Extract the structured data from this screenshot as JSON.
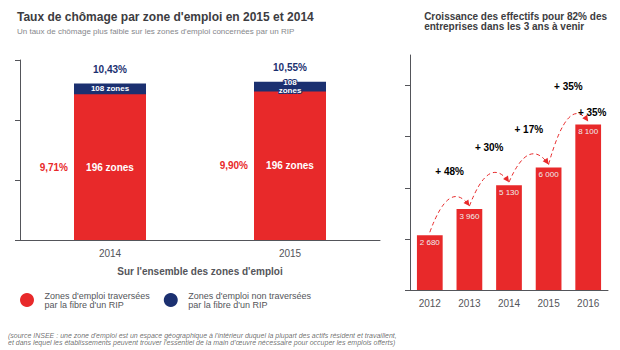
{
  "chart_data": [
    {
      "type": "bar",
      "title": "Taux de chômage par zone d'emploi en 2015 et 2014",
      "subtitle": "Un taux de chômage plus faible sur les zones d'emploi concernées par un RIP",
      "categories": [
        "2014",
        "2015"
      ],
      "xlabel": "Sur l'ensemble des zones d'emploi",
      "series": [
        {
          "name": "Zones d'emploi traversées\npar la fibre d'un RIP",
          "color": "#E8292A",
          "values": [
            9.71,
            9.9
          ],
          "value_labels": [
            "9,71%",
            "9,90%"
          ],
          "zone_labels": [
            "196 zones",
            "196 zones"
          ]
        },
        {
          "name": "Zones d'emploi non traversées\npar la fibre d'un RIP",
          "color": "#1B3070",
          "values": [
            10.43,
            10.55
          ],
          "value_labels": [
            "10,43%",
            "10,55%"
          ],
          "zone_labels": [
            "108 zones",
            "108\nzones"
          ]
        }
      ],
      "stacked": false,
      "ylim": [
        0,
        12
      ],
      "yticks": [
        0,
        4,
        8,
        12
      ],
      "grid": false,
      "legend": "bottom",
      "data_labels": true,
      "tick_labels": "x",
      "footnote": "(source INSEE : une zone d'emploi est un espace géographique à l'intérieur duquel la plupart des actifs résident et travaillent,\net dans lequel les établissements peuvent trouver l'essentiel de la main d’œuvre nécessaire pour occuper les emplois offerts)"
    },
    {
      "type": "bar",
      "title": "Croissance des effectifs pour 82% des\nentreprises dans les 3 ans à venir",
      "categories": [
        "2012",
        "2013",
        "2014",
        "2015",
        "2016"
      ],
      "values": [
        2680,
        3960,
        5130,
        6000,
        8100
      ],
      "value_labels": [
        "2 680",
        "3 960",
        "5 130",
        "6 000",
        "8 100"
      ],
      "color": "#E8292A",
      "ylim": [
        0,
        11500
      ],
      "yticks": [
        0,
        2500,
        5000,
        7500,
        10000
      ],
      "grid": false,
      "data_labels": true,
      "tick_labels": "x",
      "annotations": [
        {
          "text": "+ 48%",
          "from": "2012",
          "to": "2013"
        },
        {
          "text": "+ 30%",
          "from": "2013",
          "to": "2014"
        },
        {
          "text": "+ 17%",
          "from": "2014",
          "to": "2015"
        },
        {
          "text": "+ 35%",
          "from": "2015",
          "to": "2016"
        },
        {
          "text": "+ 35%",
          "at": "2016"
        }
      ]
    }
  ]
}
